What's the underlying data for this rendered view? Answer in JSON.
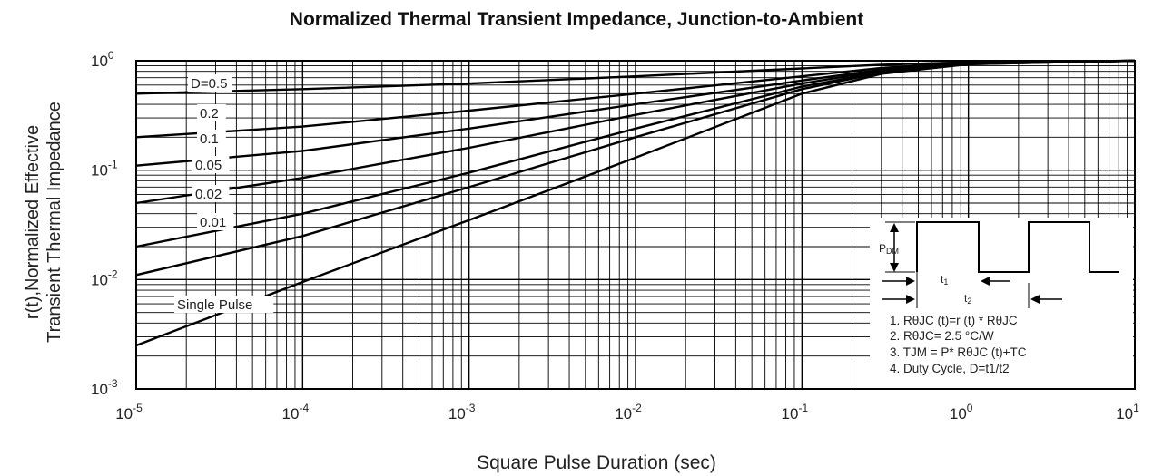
{
  "chart_data": {
    "type": "line",
    "title": "Normalized Thermal Transient Impedance, Junction-to-Ambient",
    "xlabel": "Square Pulse Duration (sec)",
    "ylabel_line1": "r(t),Normalized Effective",
    "ylabel_line2": "Transient Thermal Impedance",
    "x_scale": "log",
    "y_scale": "log",
    "xlim": [
      1e-05,
      10
    ],
    "ylim": [
      0.001,
      1
    ],
    "grid": true,
    "x_ticks": [
      {
        "value": 1e-05,
        "base": "10",
        "exp": "-5"
      },
      {
        "value": 0.0001,
        "base": "10",
        "exp": "-4"
      },
      {
        "value": 0.001,
        "base": "10",
        "exp": "-3"
      },
      {
        "value": 0.01,
        "base": "10",
        "exp": "-2"
      },
      {
        "value": 0.1,
        "base": "10",
        "exp": "-1"
      },
      {
        "value": 1,
        "base": "10",
        "exp": "0"
      },
      {
        "value": 10,
        "base": "10",
        "exp": "1"
      }
    ],
    "y_ticks": [
      {
        "value": 0.001,
        "base": "10",
        "exp": "-3"
      },
      {
        "value": 0.01,
        "base": "10",
        "exp": "-2"
      },
      {
        "value": 0.1,
        "base": "10",
        "exp": "-1"
      },
      {
        "value": 1,
        "base": "10",
        "exp": "0"
      }
    ],
    "series": [
      {
        "name": "D=0.5",
        "x": [
          1e-05,
          0.0001,
          0.001,
          0.01,
          0.1,
          0.3,
          1,
          10
        ],
        "y": [
          0.5,
          0.55,
          0.62,
          0.72,
          0.85,
          0.92,
          0.97,
          1.0
        ]
      },
      {
        "name": "0.2",
        "x": [
          1e-05,
          0.0001,
          0.001,
          0.01,
          0.1,
          0.3,
          1,
          10
        ],
        "y": [
          0.2,
          0.25,
          0.35,
          0.5,
          0.72,
          0.86,
          0.96,
          1.0
        ]
      },
      {
        "name": "0.1",
        "x": [
          1e-05,
          0.0001,
          0.001,
          0.01,
          0.1,
          0.3,
          1,
          10
        ],
        "y": [
          0.11,
          0.15,
          0.24,
          0.4,
          0.66,
          0.83,
          0.95,
          1.0
        ]
      },
      {
        "name": "0.05",
        "x": [
          1e-05,
          0.0001,
          0.001,
          0.01,
          0.1,
          0.3,
          1,
          10
        ],
        "y": [
          0.05,
          0.085,
          0.16,
          0.32,
          0.62,
          0.81,
          0.94,
          1.0
        ]
      },
      {
        "name": "0.02",
        "x": [
          1e-05,
          0.0001,
          0.001,
          0.01,
          0.1,
          0.3,
          1,
          10
        ],
        "y": [
          0.02,
          0.04,
          0.095,
          0.24,
          0.58,
          0.79,
          0.94,
          1.0
        ]
      },
      {
        "name": "0.01",
        "x": [
          1e-05,
          0.0001,
          0.001,
          0.01,
          0.1,
          0.3,
          1,
          10
        ],
        "y": [
          0.011,
          0.025,
          0.07,
          0.2,
          0.55,
          0.78,
          0.93,
          1.0
        ]
      },
      {
        "name": "Single Pulse",
        "x": [
          1e-05,
          0.0001,
          0.001,
          0.01,
          0.1,
          0.3,
          1,
          10
        ],
        "y": [
          0.0025,
          0.0095,
          0.035,
          0.13,
          0.5,
          0.76,
          0.93,
          1.0
        ]
      }
    ],
    "inset": {
      "label_p": "P",
      "label_p_sub": "DM",
      "label_t1": "t",
      "label_t1_sub": "1",
      "label_t2": "t",
      "label_t2_sub": "2"
    },
    "notes": [
      "1. RθJC (t)=r (t) * RθJC",
      "2. RθJC= 2.5 °C/W",
      "3. TJM = P* RθJC (t)+TC",
      "4. Duty Cycle, D=t1/t2"
    ]
  }
}
